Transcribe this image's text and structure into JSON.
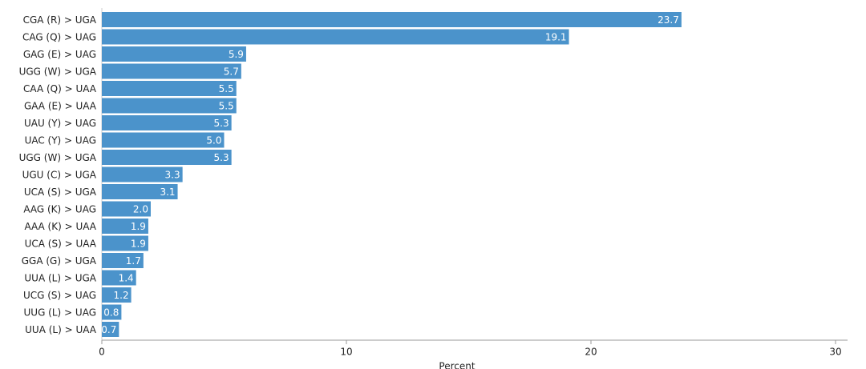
{
  "chart_data": {
    "type": "hbar",
    "xlabel": "Percent",
    "categories": [
      "CGA (R) > UGA",
      "CAG (Q) > UAG",
      "GAG (E) > UAG",
      "UGG (W) > UGA",
      "CAA (Q) > UAA",
      "GAA (E) > UAA",
      "UAU (Y) > UAG",
      "UAC (Y) > UAG",
      "UGG (W) > UGA",
      "UGU (C) > UGA",
      "UCA (S) > UGA",
      "AAG (K) > UAG",
      "AAA (K) > UAA",
      "UCA (S) > UAA",
      "GGA (G) > UGA",
      "UUA (L) > UGA",
      "UCG (S) > UAG",
      "UUG (L) > UAG",
      "UUA (L) > UAA"
    ],
    "values": [
      23.7,
      19.1,
      5.9,
      5.7,
      5.5,
      5.5,
      5.3,
      5.0,
      5.3,
      3.3,
      3.1,
      2.0,
      1.9,
      1.9,
      1.7,
      1.4,
      1.2,
      0.8,
      0.7
    ],
    "value_labels": [
      "23.7",
      "19.1",
      "5.9",
      "5.7",
      "5.5",
      "5.5",
      "5.3",
      "5.0",
      "5.3",
      "3.3",
      "3.1",
      "2.0",
      "1.9",
      "1.9",
      "1.7",
      "1.4",
      "1.2",
      "0.8",
      "0.7"
    ],
    "color": "#4b93cb",
    "xlim": [
      0,
      30
    ],
    "xticks": [
      0,
      10,
      20,
      30
    ],
    "grid": false
  }
}
